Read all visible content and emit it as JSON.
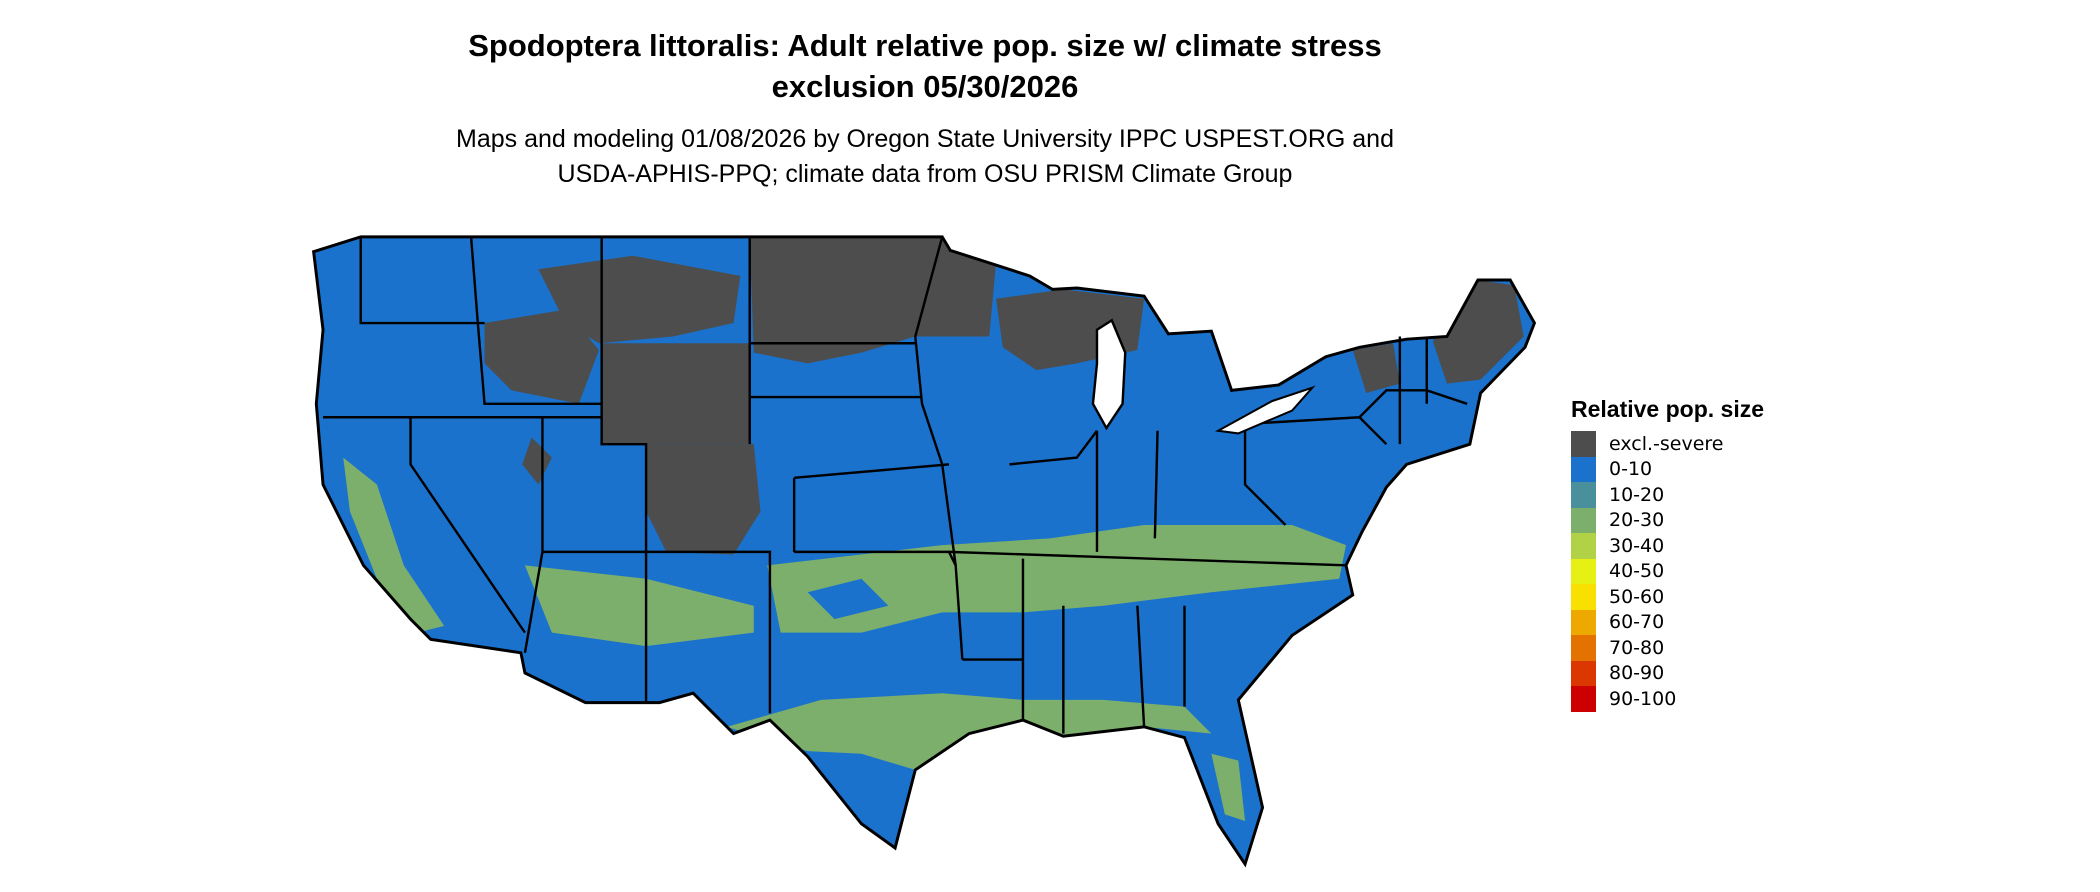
{
  "title_line1": "Spodoptera littoralis: Adult relative pop. size w/ climate stress",
  "title_line2": "exclusion 05/30/2026",
  "subtitle_line1": "Maps and modeling 01/08/2026 by Oregon State University IPPC USPEST.ORG and",
  "subtitle_line2": "USDA-APHIS-PPQ; climate data from OSU PRISM Climate Group",
  "map": {
    "region": "Contiguous United States",
    "colors": {
      "excluded": "#4d4d4d",
      "low": "#1a72cc",
      "mid": "#7cae6c",
      "border": "#000000"
    }
  },
  "legend": {
    "title": "Relative pop. size",
    "items": [
      {
        "label": "excl.-severe",
        "color": "#4d4d4d"
      },
      {
        "label": "0-10",
        "color": "#1a72cc"
      },
      {
        "label": "10-20",
        "color": "#4a8f9c"
      },
      {
        "label": "20-30",
        "color": "#7cae6c"
      },
      {
        "label": "30-40",
        "color": "#b1d146"
      },
      {
        "label": "40-50",
        "color": "#e6f014"
      },
      {
        "label": "50-60",
        "color": "#f8e000"
      },
      {
        "label": "60-70",
        "color": "#eea900"
      },
      {
        "label": "70-80",
        "color": "#e47200"
      },
      {
        "label": "80-90",
        "color": "#da3800"
      },
      {
        "label": "90-100",
        "color": "#cc0000"
      }
    ]
  }
}
